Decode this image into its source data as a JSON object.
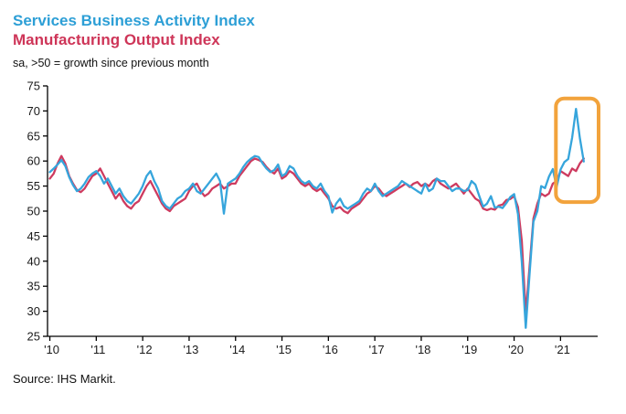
{
  "header": {
    "title_services": "Services Business Activity Index",
    "title_manufacturing": "Manufacturing Output Index",
    "subtitle": "sa, >50 = growth since previous month"
  },
  "footer": {
    "source": "Source: IHS Markit."
  },
  "colors": {
    "services": "#2D9FD6",
    "manufacturing": "#CE3558",
    "highlight": "#F2A33C",
    "axis": "#000000"
  },
  "chart_data": {
    "type": "line",
    "title": "Services Business Activity Index vs Manufacturing Output Index",
    "subtitle": "sa, >50 = growth since previous month",
    "xlabel": "",
    "ylabel": "",
    "x_start": 2010.0,
    "x_step": 0.0833333,
    "xlim": [
      2009.95,
      2021.8
    ],
    "ylim": [
      25,
      75
    ],
    "y_tick_step": 5,
    "grid": false,
    "legend_position": "titles-act-as-legend",
    "axis_color": "#000000",
    "x_ticks": [
      2010,
      2011,
      2012,
      2013,
      2014,
      2015,
      2016,
      2017,
      2018,
      2019,
      2020,
      2021
    ],
    "x_tick_labels": [
      "'10",
      "'11",
      "'12",
      "'13",
      "'14",
      "'15",
      "'16",
      "'17",
      "'18",
      "'19",
      "'20",
      "'21"
    ],
    "series": [
      {
        "key": "services",
        "name": "Services Business Activity Index",
        "color": "#36A5DC",
        "values": [
          57.8,
          58.5,
          59.3,
          60.2,
          59.0,
          56.8,
          55.2,
          54.0,
          54.5,
          55.5,
          56.8,
          57.5,
          58.0,
          57.0,
          55.5,
          56.5,
          55.0,
          53.5,
          54.5,
          53.0,
          52.0,
          51.5,
          52.5,
          53.5,
          55.0,
          57.0,
          58.0,
          56.0,
          54.5,
          52.0,
          51.0,
          50.5,
          51.5,
          52.5,
          53.0,
          54.0,
          54.5,
          55.5,
          54.0,
          53.5,
          54.5,
          55.5,
          56.5,
          57.5,
          56.0,
          49.5,
          55.5,
          56.0,
          56.5,
          57.5,
          58.8,
          59.8,
          60.5,
          61.0,
          60.8,
          59.5,
          58.5,
          57.8,
          58.2,
          59.3,
          57.0,
          57.5,
          59.0,
          58.5,
          57.0,
          56.0,
          55.5,
          56.0,
          55.0,
          54.5,
          55.5,
          54.0,
          53.0,
          49.7,
          51.5,
          52.5,
          51.0,
          50.5,
          51.0,
          51.5,
          52.0,
          53.5,
          54.5,
          54.0,
          55.5,
          54.0,
          53.0,
          53.5,
          54.0,
          54.5,
          55.0,
          56.0,
          55.5,
          55.0,
          54.5,
          54.0,
          53.5,
          55.5,
          54.0,
          54.5,
          56.5,
          56.0,
          56.0,
          55.0,
          54.0,
          54.5,
          54.5,
          54.0,
          54.2,
          56.0,
          55.3,
          53.0,
          50.9,
          51.5,
          53.0,
          50.7,
          50.9,
          50.6,
          51.6,
          52.8,
          53.4,
          49.4,
          39.8,
          26.7,
          37.5,
          47.9,
          50.0,
          55.0,
          54.6,
          56.9,
          58.4,
          54.8,
          58.3,
          59.8,
          60.4,
          64.7,
          70.4,
          64.6,
          59.9
        ]
      },
      {
        "key": "manufacturing",
        "name": "Manufacturing Output Index",
        "color": "#CE3B5F",
        "values": [
          56.5,
          57.5,
          59.5,
          61.0,
          59.5,
          57.0,
          55.5,
          54.2,
          53.8,
          54.5,
          55.8,
          57.0,
          57.5,
          58.5,
          57.0,
          55.5,
          54.0,
          52.5,
          53.5,
          52.0,
          51.0,
          50.5,
          51.5,
          52.0,
          53.5,
          55.0,
          56.0,
          54.5,
          53.0,
          51.5,
          50.5,
          50.0,
          51.0,
          51.5,
          52.0,
          52.5,
          54.0,
          55.0,
          55.5,
          54.0,
          53.0,
          53.5,
          54.5,
          55.0,
          55.5,
          54.5,
          55.0,
          55.5,
          55.5,
          57.0,
          58.0,
          59.0,
          60.0,
          60.5,
          60.2,
          59.8,
          58.8,
          58.0,
          57.5,
          58.5,
          56.5,
          57.0,
          58.0,
          57.5,
          56.5,
          55.5,
          55.0,
          55.5,
          54.5,
          54.0,
          54.5,
          53.5,
          52.5,
          51.0,
          50.5,
          50.8,
          50.0,
          49.6,
          50.5,
          51.0,
          51.5,
          52.5,
          53.5,
          54.0,
          55.0,
          54.5,
          53.5,
          53.0,
          53.5,
          54.0,
          54.5,
          55.0,
          55.5,
          54.8,
          55.5,
          55.8,
          55.0,
          55.5,
          55.0,
          56.0,
          56.5,
          55.5,
          55.0,
          54.5,
          55.0,
          55.5,
          54.5,
          53.5,
          54.5,
          53.5,
          52.5,
          52.0,
          50.5,
          50.2,
          50.5,
          50.3,
          51.1,
          51.3,
          52.2,
          52.4,
          53.0,
          50.8,
          44.0,
          29.5,
          39.0,
          48.5,
          51.5,
          53.5,
          53.0,
          53.5,
          55.5,
          56.0,
          58.0,
          57.5,
          57.0,
          58.5,
          58.0,
          59.5,
          60.5
        ]
      }
    ],
    "highlight": {
      "x_from": 2020.9,
      "x_to": 2021.82,
      "y_from": 51.8,
      "y_to": 72.5,
      "color": "#F2A33C",
      "label": "2021 services spike highlight"
    }
  }
}
